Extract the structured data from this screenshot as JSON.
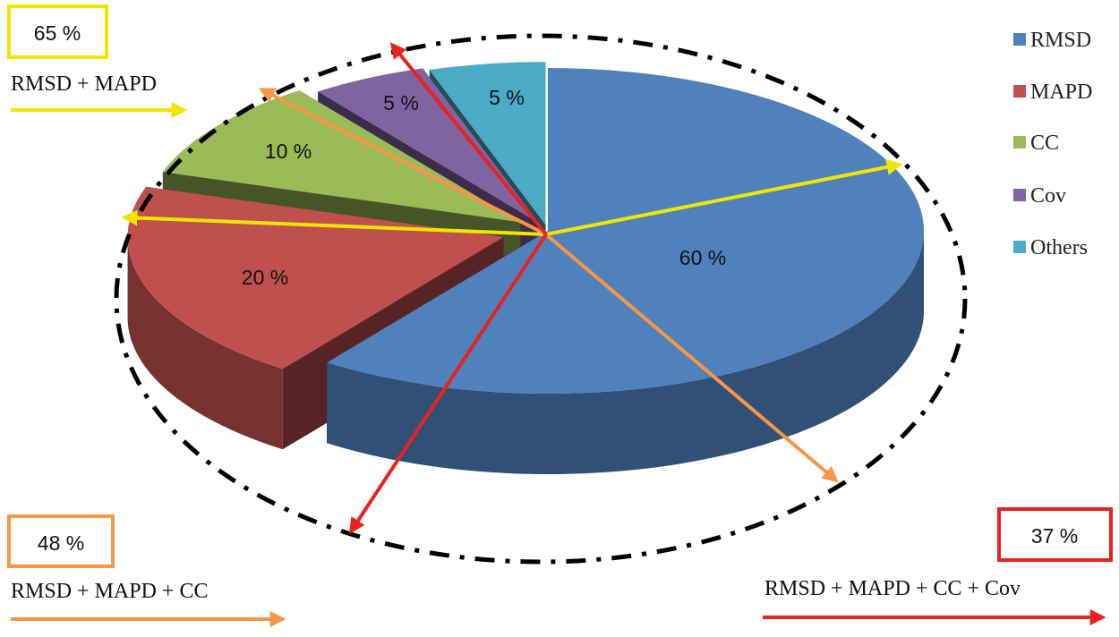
{
  "chart_data": {
    "type": "pie",
    "title": "",
    "categories": [
      "RMSD",
      "MAPD",
      "CC",
      "Cov",
      "Others"
    ],
    "values": [
      60,
      20,
      10,
      5,
      5
    ],
    "value_labels": [
      "60 %",
      "20 %",
      "10 %",
      "5 %",
      "5 %"
    ],
    "colors": [
      "#4f81bd",
      "#c0504d",
      "#9bbb59",
      "#8064a2",
      "#4bacc6"
    ],
    "legend": {
      "position": "right",
      "entries": [
        "RMSD",
        "MAPD",
        "CC",
        "Cov",
        "Others"
      ]
    },
    "annotations": [
      {
        "value_label": "65 %",
        "caption": "RMSD + MAPD",
        "color": "#f2e600"
      },
      {
        "value_label": "48 %",
        "caption": "RMSD + MAPD + CC",
        "color": "#f79646"
      },
      {
        "value_label": "37 %",
        "caption": "RMSD + MAPD + CC + Cov",
        "color": "#e8221e"
      }
    ]
  }
}
